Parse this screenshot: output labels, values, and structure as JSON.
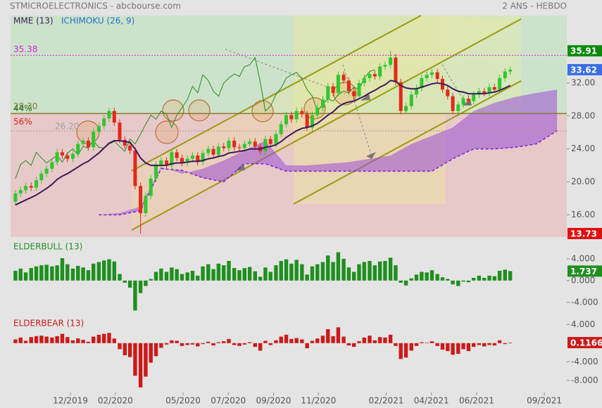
{
  "chart_data": [
    {
      "type": "candlestick",
      "title": "STMICROELECTRONICS - abcbourse.com",
      "period": "2 ANS - HEBDO",
      "x": [
        2019.714,
        2019.733,
        2019.752,
        2019.772,
        2019.791,
        2019.81,
        2019.829,
        2019.849,
        2019.868,
        2019.887,
        2019.906,
        2019.926,
        2019.945,
        2019.964,
        2019.983,
        2020.002,
        2020.022,
        2020.041,
        2020.06,
        2020.079,
        2020.099,
        2020.118,
        2020.137,
        2020.156,
        2020.176,
        2020.195,
        2020.214,
        2020.233,
        2020.252,
        2020.272,
        2020.291,
        2020.31,
        2020.329,
        2020.349,
        2020.368,
        2020.387,
        2020.406,
        2020.426,
        2020.445,
        2020.464,
        2020.483,
        2020.502,
        2020.522,
        2020.541,
        2020.56,
        2020.579,
        2020.599,
        2020.618,
        2020.637,
        2020.656,
        2020.676,
        2020.695,
        2020.714,
        2020.733,
        2020.752,
        2020.772,
        2020.791,
        2020.81,
        2020.829,
        2020.849,
        2020.868,
        2020.887,
        2020.906,
        2020.926,
        2020.945,
        2020.964,
        2020.983,
        2021.002,
        2021.022,
        2021.041,
        2021.06,
        2021.079,
        2021.099,
        2021.118,
        2021.137,
        2021.156,
        2021.176,
        2021.195,
        2021.214,
        2021.233,
        2021.252,
        2021.272,
        2021.291,
        2021.31,
        2021.329,
        2021.349,
        2021.368,
        2021.387,
        2021.406,
        2021.426,
        2021.445,
        2021.464,
        2021.483,
        2021.502,
        2021.522,
        2021.541
      ],
      "open": [
        17.6,
        18.6,
        19.0,
        19.5,
        19.3,
        20.2,
        21.0,
        21.6,
        22.4,
        23.6,
        23.2,
        22.8,
        23.4,
        24.6,
        25.0,
        24.2,
        26.1,
        26.8,
        27.7,
        28.6,
        27.2,
        25.1,
        24.4,
        23.8,
        19.5,
        16.2,
        18.3,
        20.4,
        22.1,
        22.6,
        22.0,
        23.6,
        22.9,
        22.3,
        22.8,
        23.2,
        22.4,
        23.5,
        24.0,
        23.3,
        24.3,
        24.1,
        25.0,
        24.2,
        24.1,
        24.6,
        24.9,
        24.3,
        23.7,
        25.2,
        24.6,
        25.8,
        27.0,
        28.1,
        27.6,
        28.6,
        28.2,
        26.6,
        28.1,
        29.0,
        30.0,
        31.6,
        30.8,
        33.0,
        32.3,
        31.0,
        30.4,
        32.0,
        32.6,
        33.1,
        32.8,
        34.0,
        34.2,
        35.1,
        32.1,
        28.6,
        29.2,
        30.6,
        31.4,
        32.6,
        33.0,
        33.3,
        32.5,
        31.2,
        30.4,
        28.6,
        29.4,
        30.1,
        29.8,
        30.6,
        31.0,
        30.8,
        31.5,
        31.2,
        32.6,
        33.4
      ],
      "high": [
        19.0,
        19.4,
        19.9,
        19.9,
        20.6,
        21.4,
        22.0,
        22.8,
        24.0,
        24.0,
        23.6,
        23.8,
        25.0,
        25.4,
        25.4,
        26.5,
        27.2,
        28.1,
        29.0,
        29.0,
        27.6,
        25.5,
        24.8,
        24.2,
        19.9,
        18.7,
        20.8,
        22.5,
        23.0,
        23.0,
        24.0,
        24.0,
        23.3,
        23.2,
        23.6,
        23.6,
        23.9,
        24.4,
        24.4,
        24.7,
        24.7,
        25.4,
        25.4,
        24.6,
        25.0,
        25.3,
        25.3,
        24.7,
        25.6,
        25.6,
        26.2,
        27.4,
        28.5,
        28.5,
        29.0,
        29.0,
        28.6,
        28.5,
        29.4,
        30.4,
        32.0,
        32.0,
        33.4,
        33.4,
        32.7,
        31.4,
        32.4,
        33.0,
        33.5,
        33.5,
        34.4,
        34.6,
        35.91,
        35.5,
        32.5,
        29.6,
        31.0,
        31.8,
        33.0,
        33.4,
        33.7,
        33.7,
        32.9,
        31.6,
        30.8,
        29.8,
        30.5,
        30.5,
        31.0,
        31.4,
        31.4,
        31.9,
        31.9,
        33.0,
        33.8,
        34.0
      ],
      "low": [
        17.2,
        18.2,
        18.6,
        18.9,
        18.9,
        19.8,
        20.6,
        21.2,
        22.0,
        22.8,
        22.4,
        22.4,
        23.0,
        24.2,
        23.8,
        23.8,
        25.7,
        26.4,
        27.3,
        26.8,
        24.7,
        24.0,
        23.4,
        19.1,
        13.73,
        15.8,
        17.9,
        20.0,
        21.7,
        21.6,
        21.6,
        22.5,
        21.9,
        21.9,
        22.4,
        22.0,
        22.0,
        23.1,
        22.9,
        22.9,
        23.7,
        23.7,
        23.8,
        23.7,
        23.7,
        24.2,
        23.9,
        23.3,
        23.3,
        24.2,
        24.2,
        25.4,
        26.6,
        27.2,
        27.2,
        27.8,
        26.2,
        26.2,
        27.7,
        28.6,
        29.6,
        30.4,
        30.4,
        31.9,
        30.6,
        30.0,
        30.0,
        31.6,
        32.2,
        32.4,
        32.4,
        33.6,
        33.8,
        31.7,
        28.2,
        28.2,
        28.8,
        30.2,
        31.0,
        32.2,
        32.6,
        32.1,
        30.8,
        30.0,
        28.2,
        28.2,
        29.0,
        29.4,
        29.4,
        30.2,
        30.4,
        30.4,
        30.8,
        30.8,
        32.2,
        33.0
      ],
      "close": [
        18.6,
        19.0,
        19.5,
        19.3,
        20.2,
        21.0,
        21.6,
        22.4,
        23.6,
        23.2,
        22.8,
        23.4,
        24.6,
        25.0,
        24.2,
        26.1,
        26.8,
        27.7,
        28.6,
        27.2,
        25.1,
        24.4,
        23.8,
        19.5,
        16.2,
        18.3,
        20.4,
        22.1,
        22.6,
        22.0,
        23.6,
        22.9,
        22.3,
        22.8,
        23.2,
        22.4,
        23.5,
        24.0,
        23.3,
        24.3,
        24.1,
        25.0,
        24.2,
        24.1,
        24.6,
        24.9,
        24.3,
        23.7,
        25.2,
        24.6,
        25.8,
        27.0,
        28.1,
        27.6,
        28.6,
        28.2,
        26.6,
        28.1,
        29.0,
        30.0,
        31.6,
        30.8,
        33.0,
        32.3,
        31.0,
        30.4,
        32.0,
        32.6,
        33.1,
        32.8,
        34.0,
        34.2,
        35.1,
        32.1,
        28.6,
        29.2,
        30.6,
        31.4,
        32.6,
        33.0,
        33.3,
        32.5,
        31.2,
        30.4,
        28.6,
        29.4,
        30.1,
        29.8,
        30.6,
        31.0,
        30.8,
        31.5,
        31.2,
        32.6,
        33.4,
        33.62
      ],
      "up_color": "#2fc72f",
      "down_color": "#e02a1a",
      "series": [
        {
          "name": "MME (13)",
          "color": "#3d1a5c",
          "values": [
            17.2,
            17.5,
            17.8,
            18.1,
            18.4,
            18.8,
            19.2,
            19.7,
            20.3,
            20.7,
            21.0,
            21.4,
            21.8,
            22.2,
            22.5,
            23.0,
            23.5,
            24.1,
            24.7,
            25.0,
            25.0,
            24.9,
            24.8,
            24.0,
            22.9,
            22.3,
            22.0,
            22.0,
            22.0,
            22.0,
            22.2,
            22.3,
            22.3,
            22.4,
            22.5,
            22.5,
            22.6,
            22.8,
            22.9,
            23.1,
            23.2,
            23.5,
            23.6,
            23.7,
            23.8,
            24.0,
            24.0,
            24.0,
            24.2,
            24.3,
            24.5,
            24.9,
            25.4,
            25.8,
            26.2,
            26.5,
            26.6,
            26.8,
            27.1,
            27.6,
            28.1,
            28.5,
            29.1,
            29.5,
            29.7,
            29.8,
            30.1,
            30.4,
            30.8,
            31.1,
            31.5,
            31.8,
            32.3,
            32.2,
            31.7,
            31.4,
            31.3,
            31.3,
            31.5,
            31.7,
            31.9,
            32.0,
            31.9,
            31.7,
            31.3,
            31.0,
            30.9,
            30.7,
            30.7,
            30.7,
            30.7,
            30.8,
            30.9,
            31.1,
            31.4,
            31.7
          ]
        }
      ],
      "ichimoku": {
        "name": "ICHIMOKU (26, 9)",
        "color": "#1f6fc8",
        "chikou": {
          "color": "#1f8f1f",
          "values": [
            20.4,
            22.1,
            22.6,
            22.0,
            23.6,
            22.9,
            22.3,
            22.8,
            23.2,
            22.4,
            23.5,
            24.0,
            23.3,
            24.3,
            24.1,
            25.0,
            24.2,
            24.1,
            24.6,
            24.9,
            24.3,
            23.7,
            25.2,
            24.6,
            25.8,
            27.0,
            28.1,
            27.6,
            28.6,
            28.2,
            26.6,
            28.1,
            29.0,
            30.0,
            31.6,
            30.8,
            33.0,
            32.3,
            31.0,
            30.4,
            32.0,
            32.6,
            33.1,
            32.8,
            34.0,
            34.2,
            35.1,
            32.1,
            28.6,
            29.2,
            30.6,
            31.4,
            32.6,
            33.0,
            33.3,
            32.5,
            31.2,
            30.4,
            28.6,
            29.4,
            30.1,
            29.8,
            30.6,
            31.0,
            30.8,
            31.5,
            31.2,
            32.6,
            33.4,
            33.62,
            null,
            null,
            null,
            null,
            null,
            null,
            null,
            null,
            null,
            null,
            null,
            null,
            null,
            null,
            null,
            null,
            null,
            null,
            null,
            null,
            null,
            null,
            null,
            null,
            null,
            null
          ]
        },
        "cloud": {
          "color": "#9b4fd6",
          "line_color": "#7a22d8",
          "x": [
            2020.022,
            2020.099,
            2020.176,
            2020.252,
            2020.329,
            2020.406,
            2020.483,
            2020.56,
            2020.637,
            2020.714,
            2020.791,
            2020.868,
            2020.945,
            2021.022,
            2021.099,
            2021.176,
            2021.252,
            2021.329,
            2021.406,
            2021.483,
            2021.56,
            2021.637,
            2021.714
          ],
          "span_a": [
            16.0,
            16.2,
            17.0,
            21.8,
            21.0,
            21.6,
            22.6,
            23.8,
            25.0,
            22.0,
            22.0,
            22.2,
            22.4,
            22.8,
            23.2,
            24.6,
            25.6,
            26.6,
            28.6,
            29.6,
            30.3,
            30.8,
            31.2
          ],
          "span_b": [
            16.0,
            16.0,
            16.5,
            21.6,
            21.4,
            20.5,
            20.0,
            22.2,
            22.2,
            21.3,
            21.3,
            21.3,
            21.3,
            21.3,
            21.3,
            21.3,
            21.3,
            22.8,
            24.0,
            24.0,
            24.2,
            24.6,
            26.2
          ]
        }
      },
      "levels": [
        35.38,
        {
          "value": 28.3,
          "label": "28.30"
        },
        {
          "value": 26.2,
          "label": "26.20"
        }
      ],
      "level_colors": [
        "#d426d4",
        "#8a7a30",
        "#a0a0a0"
      ],
      "zone_labels": [
        "44%",
        "56%"
      ],
      "zone_colors": [
        "#cde2cb",
        "#e7c9c9"
      ],
      "box_colors": [
        "#0a8a0a",
        "#3a6ee6",
        "#e01010"
      ],
      "xlim": [
        2019.696,
        2021.75
      ],
      "ylim": [
        13.3,
        40.2
      ],
      "xticks": [
        {
          "value": 2019.917,
          "label": "12/2019"
        },
        {
          "value": 2020.083,
          "label": "02/2020"
        },
        {
          "value": 2020.333,
          "label": "05/2020"
        },
        {
          "value": 2020.5,
          "label": "07/2020"
        },
        {
          "value": 2020.667,
          "label": "09/2020"
        },
        {
          "value": 2020.833,
          "label": "11/2020"
        },
        {
          "value": 2021.083,
          "label": "02/2021"
        },
        {
          "value": 2021.25,
          "label": "04/2021"
        },
        {
          "value": 2021.417,
          "label": "06/2021"
        },
        {
          "value": 2021.667,
          "label": "09/2021"
        }
      ],
      "yticks": [
        {
          "value": 16,
          "label": "16.00"
        },
        {
          "value": 20,
          "label": "20.00"
        },
        {
          "value": 24,
          "label": "24.00"
        },
        {
          "value": 28,
          "label": "28.00"
        },
        {
          "value": 32,
          "label": "32.00"
        }
      ]
    },
    {
      "type": "bar",
      "title": "ELDERBULL (13)",
      "color": "#1f8f1f",
      "values": [
        1.8,
        2.2,
        1.5,
        2.3,
        2.6,
        2.8,
        2.9,
        2.6,
        2.8,
        4.1,
        3.0,
        2.2,
        2.7,
        2.4,
        1.9,
        3.1,
        3.4,
        3.7,
        3.9,
        3.5,
        1.2,
        -0.4,
        -1.3,
        -5.5,
        -2.3,
        -1.0,
        0.3,
        1.6,
        2.2,
        1.6,
        2.4,
        2.1,
        1.2,
        1.5,
        1.8,
        0.9,
        2.6,
        3.0,
        2.1,
        3.1,
        2.8,
        3.6,
        2.3,
        1.9,
        2.3,
        2.5,
        1.7,
        0.7,
        2.4,
        1.6,
        2.8,
        3.6,
        3.9,
        3.1,
        3.8,
        3.0,
        1.1,
        2.6,
        3.0,
        3.4,
        4.6,
        3.4,
        5.2,
        4.0,
        2.4,
        1.6,
        3.0,
        3.4,
        3.6,
        2.8,
        3.5,
        3.6,
        4.2,
        2.8,
        -0.4,
        -0.9,
        0.4,
        1.1,
        1.6,
        1.5,
        1.9,
        1.2,
        0.6,
        0.3,
        -0.7,
        -1.0,
        -0.2,
        -0.3,
        0.5,
        0.9,
        0.5,
        0.9,
        0.8,
        1.8,
        2.0,
        1.737
      ],
      "ylim": [
        -6.6,
        5.4
      ],
      "yticks": [
        {
          "value": 4,
          "label": "4.000"
        },
        {
          "value": 0,
          "label": "0.000"
        },
        {
          "value": -4,
          "label": "-4.000"
        }
      ]
    },
    {
      "type": "bar",
      "title": "ELDERBEAR (13)",
      "color": "#cc1a1a",
      "values": [
        0.8,
        1.2,
        0.5,
        1.3,
        1.5,
        1.6,
        1.4,
        1.2,
        1.5,
        2.0,
        1.3,
        0.6,
        1.0,
        0.7,
        0.3,
        1.4,
        1.8,
        2.0,
        2.2,
        1.0,
        -1.3,
        -2.6,
        -3.0,
        -7.0,
        -9.5,
        -7.2,
        -4.2,
        -2.8,
        -1.0,
        -0.3,
        0.6,
        0.5,
        -0.6,
        -0.4,
        -0.3,
        -0.7,
        -0.2,
        0.3,
        -0.5,
        0.2,
        0.4,
        0.9,
        -0.4,
        -0.6,
        -0.3,
        0.2,
        -0.8,
        -1.6,
        0.5,
        -0.4,
        0.6,
        1.4,
        1.8,
        0.9,
        1.1,
        0.8,
        -1.1,
        0.5,
        1.0,
        1.6,
        3.0,
        1.5,
        3.4,
        1.4,
        -0.5,
        -0.8,
        0.4,
        1.2,
        1.6,
        0.6,
        1.3,
        1.2,
        1.8,
        -0.6,
        -3.4,
        -3.1,
        -1.6,
        -0.6,
        0.2,
        0.1,
        0.4,
        -0.6,
        -1.4,
        -1.7,
        -2.5,
        -2.3,
        -1.3,
        -1.7,
        -0.8,
        -0.4,
        -0.7,
        -0.4,
        -0.5,
        0.6,
        -0.2,
        0.1166
      ],
      "ylim": [
        -10,
        4.5
      ],
      "yticks": [
        {
          "value": 4,
          "label": "4.000"
        },
        {
          "value": -4,
          "label": "-4.000"
        },
        {
          "value": -8,
          "label": "-8.000"
        }
      ]
    }
  ]
}
